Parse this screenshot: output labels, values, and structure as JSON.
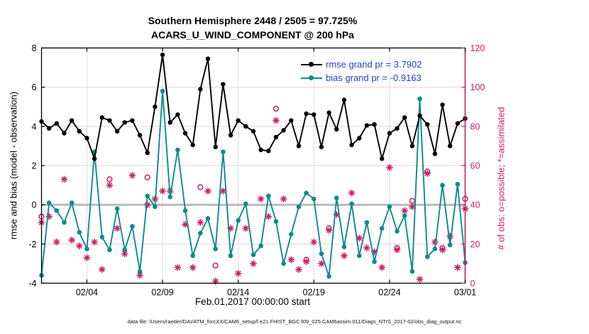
{
  "figure": {
    "title_line1": "Southern Hemisphere 2448 / 2505 = 97.725%",
    "title_line2": "ACARS_U_WIND_COMPONENT @ 200 hPa",
    "xlabel": "Feb.01,2017 00:00:00 start",
    "ylabel_left": "rmse and bias (model - observation)",
    "ylabel_right": "# of obs: o=possible; *=assimilated",
    "caption": "data file: /Users/raeder/DAI/ATM_forcXX/CAM6_setup/f.e21.FHIST_BGC.f09_025.CAM6assim.011/Diags_NTrS_2017-02/obs_diag_output.nc"
  },
  "legend": {
    "rmse_label": "rmse grand pr = 3.7902",
    "bias_label": "bias grand pr = -0.9163"
  },
  "colors": {
    "rmse": "#000000",
    "bias": "#0e8b8b",
    "obs": "#cc1f66",
    "legend_text": "#2244cc",
    "grid_h": "#f2cdd8",
    "grid_v": "#dcdcdc",
    "zero_line": "#b8b8b8",
    "frame": "#000000"
  },
  "chart_data": {
    "type": "line",
    "title": "Southern Hemisphere 2448 / 2505 = 97.725% | ACARS_U_WIND_COMPONENT @ 200 hPa",
    "x_unit": "days since Feb.01,2017 00:00:00 UTC, 12-hourly bins",
    "xlim": [
      0,
      28
    ],
    "ylim_left": [
      -4,
      8
    ],
    "ylim_right": [
      0,
      120
    ],
    "yticks_left": [
      -4,
      -2,
      0,
      2,
      4,
      6,
      8
    ],
    "yticks_right": [
      0,
      20,
      40,
      60,
      80,
      100,
      120
    ],
    "xticks": [
      {
        "t": 3,
        "label": "02/04"
      },
      {
        "t": 8,
        "label": "02/09"
      },
      {
        "t": 13,
        "label": "02/14"
      },
      {
        "t": 18,
        "label": "02/19"
      },
      {
        "t": 23,
        "label": "02/24"
      },
      {
        "t": 28,
        "label": "03/01"
      }
    ],
    "x": [
      0,
      0.5,
      1,
      1.5,
      2,
      2.5,
      3,
      3.5,
      4,
      4.5,
      5,
      5.5,
      6,
      6.5,
      7,
      7.5,
      8,
      8.5,
      9,
      9.5,
      10,
      10.5,
      11,
      11.5,
      12,
      12.5,
      13,
      13.5,
      14,
      14.5,
      15,
      15.5,
      16,
      16.5,
      17,
      17.5,
      18,
      18.5,
      19,
      19.5,
      20,
      20.5,
      21,
      21.5,
      22,
      22.5,
      23,
      23.5,
      24,
      24.5,
      25,
      25.5,
      26,
      26.5,
      27,
      27.5,
      28
    ],
    "series": [
      {
        "name": "rmse",
        "axis": "left",
        "marker": "point",
        "values": [
          4.25,
          3.9,
          4.15,
          3.65,
          4.3,
          3.75,
          3.4,
          2.35,
          4.45,
          4.3,
          3.75,
          4.2,
          4.3,
          3.55,
          2.65,
          5.0,
          7.65,
          4.2,
          4.6,
          3.65,
          3.05,
          5.9,
          7.45,
          2.95,
          6.15,
          3.55,
          4.3,
          4.0,
          3.75,
          2.8,
          2.75,
          3.45,
          3.8,
          4.3,
          3.0,
          4.65,
          4.6,
          2.95,
          4.7,
          3.85,
          5.35,
          3.05,
          3.4,
          4.05,
          4.1,
          2.35,
          3.65,
          3.9,
          4.45,
          3.0,
          4.55,
          4.1,
          2.6,
          5.1,
          3.0,
          4.15,
          4.4
        ]
      },
      {
        "name": "bias",
        "axis": "left",
        "marker": "point",
        "values": [
          -3.6,
          0.1,
          -0.3,
          -0.9,
          0.1,
          -1.4,
          -2.25,
          2.7,
          -1.65,
          -2.3,
          -0.2,
          -2.3,
          -1.1,
          -3.4,
          0.45,
          -0.1,
          5.8,
          0.4,
          2.8,
          -0.3,
          -2.6,
          -1.45,
          -0.7,
          -2.25,
          2.7,
          -2.6,
          -0.8,
          0.05,
          -2.55,
          -2.1,
          0.45,
          -0.85,
          -3.0,
          -1.5,
          -0.1,
          0.6,
          0.3,
          -2.5,
          -3.65,
          0.35,
          -2.15,
          0.05,
          -2.6,
          -0.9,
          -2.9,
          -1.2,
          -0.1,
          -1.35,
          -0.55,
          -3.4,
          5.4,
          -2.65,
          -2.25,
          1.0,
          -2.05,
          1.05,
          -2.95
        ]
      },
      {
        "name": "possible",
        "axis": "right",
        "marker": "o",
        "values": [
          34,
          34,
          21,
          53,
          22,
          19,
          13,
          21,
          7,
          53,
          28,
          15,
          55,
          4,
          54,
          43,
          47,
          47,
          8,
          30,
          8,
          49,
          47,
          9,
          47,
          28,
          5,
          28,
          10,
          43,
          34,
          89,
          43,
          12,
          7,
          12,
          21,
          10,
          28,
          35,
          14,
          46,
          23,
          18,
          16,
          8,
          59,
          18,
          37,
          42,
          2,
          57,
          21,
          18,
          24,
          8,
          43
        ]
      },
      {
        "name": "assimilated",
        "axis": "right",
        "marker": "*",
        "values": [
          31,
          34,
          21,
          53,
          22,
          19,
          13,
          21,
          7,
          50,
          28,
          15,
          55,
          4,
          40,
          43,
          47,
          47,
          8,
          30,
          8,
          31,
          47,
          1,
          47,
          28,
          5,
          28,
          10,
          43,
          34,
          83,
          43,
          12,
          7,
          11,
          21,
          10,
          27,
          35,
          14,
          46,
          23,
          18,
          16,
          8,
          59,
          17,
          37,
          39,
          2,
          56,
          21,
          17,
          24,
          8,
          38
        ]
      }
    ]
  }
}
